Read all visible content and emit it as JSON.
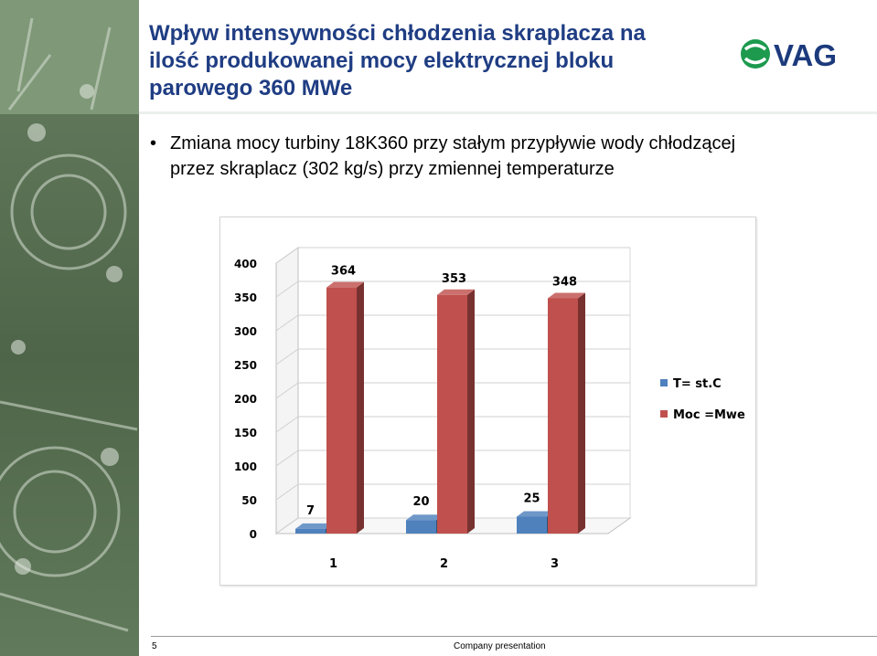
{
  "slide": {
    "title": "Wpływ  intensywności chłodzenia skraplacza na\nilość produkowanej mocy elektrycznej bloku\nparowego 360 MWe",
    "logo_text": "VAG",
    "bullet": "Zmiana mocy turbiny 18K360 przy stałym przypływie wody chłodzącej\nprzez skraplacz (302 kg/s) przy zmiennej temperaturze",
    "bullet_symbol": "•",
    "page_number": "5",
    "footer_label": "Company presentation"
  },
  "colors": {
    "title": "#1f3d83",
    "logo_green": "#1d9a4e",
    "logo_text": "#1c3a7c",
    "series_blue": "#4f81bd",
    "series_red": "#c0504d"
  },
  "chart_data": {
    "type": "bar",
    "three_d": true,
    "categories": [
      "1",
      "2",
      "3"
    ],
    "series": [
      {
        "name": "T= st.C",
        "values": [
          7,
          20,
          25
        ],
        "color": "#4f81bd"
      },
      {
        "name": "Moc =Mwe",
        "values": [
          364,
          353,
          348
        ],
        "color": "#c0504d"
      }
    ],
    "y_ticks": [
      "0",
      "50",
      "100",
      "150",
      "200",
      "250",
      "300",
      "350",
      "400"
    ],
    "ylim": [
      0,
      400
    ],
    "legend_position": "right",
    "title": "",
    "xlabel": "",
    "ylabel": ""
  }
}
